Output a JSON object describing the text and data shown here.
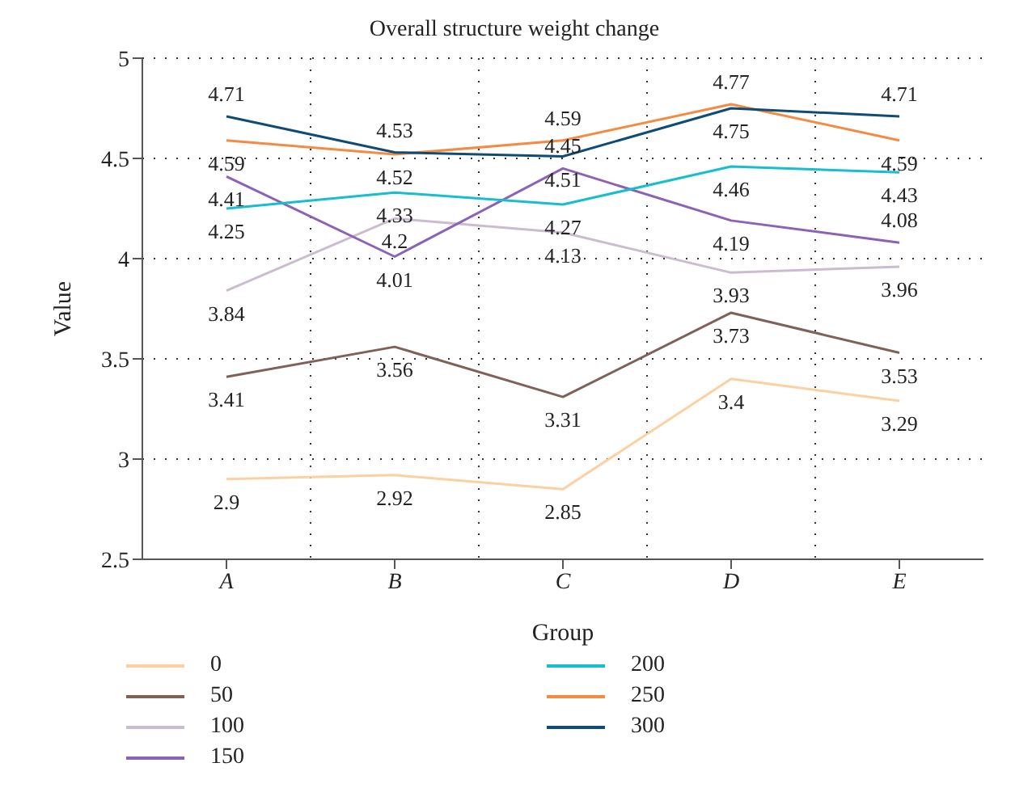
{
  "chart_data": {
    "type": "line",
    "title": "Overall structure weight change",
    "xlabel": "Group",
    "ylabel": "Value",
    "categories": [
      "A",
      "B",
      "C",
      "D",
      "E"
    ],
    "series": [
      {
        "name": "0",
        "color": "#fdd0a2",
        "values": [
          2.9,
          2.92,
          2.85,
          3.4,
          3.29
        ]
      },
      {
        "name": "50",
        "color": "#7f6158",
        "values": [
          3.41,
          3.56,
          3.31,
          3.73,
          3.53
        ]
      },
      {
        "name": "100",
        "color": "#cbbccf",
        "values": [
          3.84,
          4.2,
          4.13,
          3.93,
          3.96
        ]
      },
      {
        "name": "150",
        "color": "#8c62b8",
        "values": [
          4.41,
          4.01,
          4.45,
          4.19,
          4.08
        ]
      },
      {
        "name": "200",
        "color": "#17becf",
        "values": [
          4.25,
          4.33,
          4.27,
          4.46,
          4.43
        ]
      },
      {
        "name": "250",
        "color": "#f58a42",
        "values": [
          4.59,
          4.52,
          4.59,
          4.77,
          4.59
        ]
      },
      {
        "name": "300",
        "color": "#0f4c75",
        "values": [
          4.71,
          4.53,
          4.51,
          4.75,
          4.71
        ]
      }
    ],
    "ylim": [
      2.5,
      5
    ],
    "yticks": [
      2.5,
      3,
      3.5,
      4,
      4.5,
      5
    ],
    "grid": true,
    "legend": "bottom",
    "data_labels": true,
    "marker": "none",
    "line_style": "solid"
  }
}
